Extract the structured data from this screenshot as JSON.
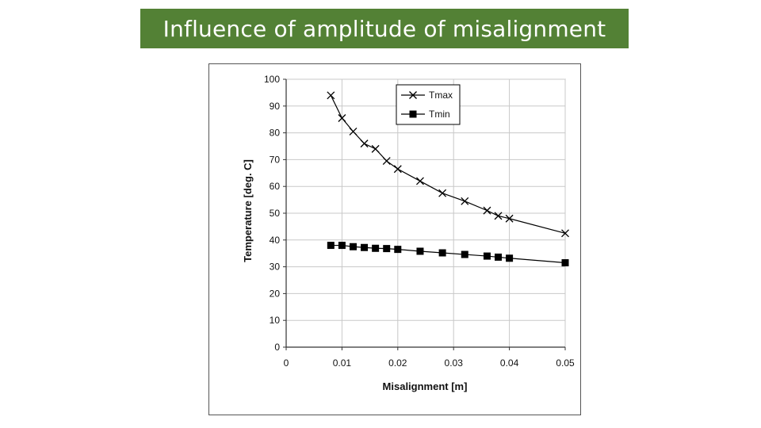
{
  "header": {
    "title": "Influence of amplitude of misalignment"
  },
  "chart_data": {
    "type": "line",
    "title": "",
    "xlabel": "Misalignment [m]",
    "ylabel": "Temperature [deg. C]",
    "xlim": [
      0,
      0.05
    ],
    "ylim": [
      0,
      100
    ],
    "x_ticks": [
      0,
      0.01,
      0.02,
      0.03,
      0.04,
      0.05
    ],
    "x_tick_labels": [
      "0",
      "0.01",
      "0.02",
      "0.03",
      "0.04",
      "0.05"
    ],
    "y_ticks": [
      0,
      10,
      20,
      30,
      40,
      50,
      60,
      70,
      80,
      90,
      100
    ],
    "y_tick_labels": [
      "0",
      "10",
      "20",
      "30",
      "40",
      "50",
      "60",
      "70",
      "80",
      "90",
      "100"
    ],
    "grid": true,
    "legend_position": "top-center",
    "series": [
      {
        "name": "Tmax",
        "marker": "x",
        "color": "#000000",
        "x": [
          0.008,
          0.01,
          0.012,
          0.014,
          0.016,
          0.018,
          0.02,
          0.024,
          0.028,
          0.032,
          0.036,
          0.038,
          0.04,
          0.05
        ],
        "y": [
          94,
          85.5,
          80.5,
          76,
          74,
          69.5,
          66.5,
          62,
          57.5,
          54.5,
          51,
          49,
          48,
          42.5
        ]
      },
      {
        "name": "Tmin",
        "marker": "square",
        "color": "#000000",
        "x": [
          0.008,
          0.01,
          0.012,
          0.014,
          0.016,
          0.018,
          0.02,
          0.024,
          0.028,
          0.032,
          0.036,
          0.038,
          0.04,
          0.05
        ],
        "y": [
          38,
          38,
          37.5,
          37.2,
          36.9,
          36.8,
          36.5,
          35.8,
          35.2,
          34.6,
          34,
          33.6,
          33.2,
          31.5
        ]
      }
    ]
  }
}
